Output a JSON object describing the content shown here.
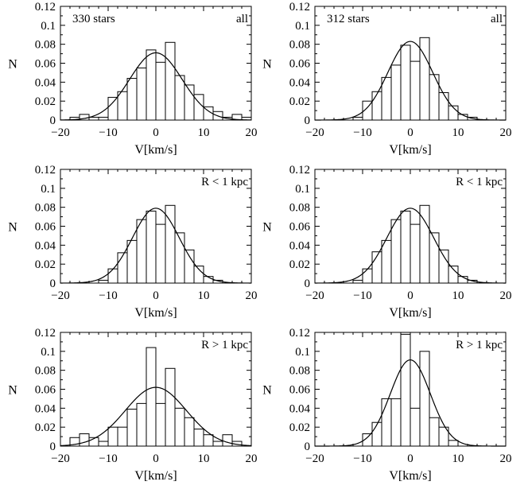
{
  "chart_data": [
    {
      "type": "bar",
      "corner_left": "330 stars",
      "corner_right": "all",
      "xlabel": "V[km/s]",
      "ylabel": "N",
      "xlim": [
        -20,
        20
      ],
      "ylim": [
        0,
        0.12
      ],
      "xticks": [
        -20,
        -10,
        0,
        10,
        20
      ],
      "yticks": [
        0,
        0.02,
        0.04,
        0.06,
        0.08,
        0.1,
        0.12
      ],
      "bin_width": 2,
      "bin_edges_start": -20,
      "values": [
        0,
        0.003,
        0.006,
        0.003,
        0.003,
        0.024,
        0.03,
        0.044,
        0.055,
        0.074,
        0.061,
        0.082,
        0.047,
        0.037,
        0.027,
        0.014,
        0.009,
        0.003,
        0.006,
        0.003
      ],
      "gaussian": {
        "mean": 0,
        "sigma": 5.5,
        "peak": 0.071
      }
    },
    {
      "type": "bar",
      "corner_left": "312 stars",
      "corner_right": "all",
      "xlabel": "V[km/s]",
      "ylabel": "N",
      "xlim": [
        -20,
        20
      ],
      "ylim": [
        0,
        0.12
      ],
      "xticks": [
        -20,
        -10,
        0,
        10,
        20
      ],
      "yticks": [
        0,
        0.02,
        0.04,
        0.06,
        0.08,
        0.1,
        0.12
      ],
      "bin_width": 2,
      "bin_edges_start": -20,
      "values": [
        0,
        0,
        0,
        0,
        0.003,
        0.02,
        0.03,
        0.045,
        0.058,
        0.079,
        0.062,
        0.087,
        0.048,
        0.029,
        0.015,
        0.006,
        0.003,
        0,
        0,
        0
      ],
      "gaussian": {
        "mean": 0,
        "sigma": 4.7,
        "peak": 0.083
      }
    },
    {
      "type": "bar",
      "corner_left": "",
      "corner_right": "R < 1 kpc",
      "xlabel": "V[km/s]",
      "ylabel": "N",
      "xlim": [
        -20,
        20
      ],
      "ylim": [
        0,
        0.12
      ],
      "xticks": [
        -20,
        -10,
        0,
        10,
        20
      ],
      "yticks": [
        0,
        0.02,
        0.04,
        0.06,
        0.08,
        0.1,
        0.12
      ],
      "bin_width": 2,
      "bin_edges_start": -20,
      "values": [
        0,
        0,
        0,
        0,
        0.003,
        0.015,
        0.032,
        0.045,
        0.067,
        0.076,
        0.062,
        0.082,
        0.053,
        0.035,
        0.018,
        0.007,
        0.003,
        0,
        0,
        0
      ],
      "gaussian": {
        "mean": 0,
        "sigma": 4.9,
        "peak": 0.079
      }
    },
    {
      "type": "bar",
      "corner_left": "",
      "corner_right": "R < 1 kpc",
      "xlabel": "V[km/s]",
      "ylabel": "N",
      "xlim": [
        -20,
        20
      ],
      "ylim": [
        0,
        0.12
      ],
      "xticks": [
        -20,
        -10,
        0,
        10,
        20
      ],
      "yticks": [
        0,
        0.02,
        0.04,
        0.06,
        0.08,
        0.1,
        0.12
      ],
      "bin_width": 2,
      "bin_edges_start": -20,
      "values": [
        0,
        0,
        0,
        0,
        0.003,
        0.015,
        0.033,
        0.045,
        0.067,
        0.076,
        0.062,
        0.082,
        0.053,
        0.035,
        0.018,
        0.007,
        0.003,
        0,
        0,
        0
      ],
      "gaussian": {
        "mean": 0,
        "sigma": 4.9,
        "peak": 0.079
      }
    },
    {
      "type": "bar",
      "corner_left": "",
      "corner_right": "R > 1 kpc",
      "xlabel": "V[km/s]",
      "ylabel": "N",
      "xlim": [
        -20,
        20
      ],
      "ylim": [
        0,
        0.12
      ],
      "xticks": [
        -20,
        -10,
        0,
        10,
        20
      ],
      "yticks": [
        0,
        0.02,
        0.04,
        0.06,
        0.08,
        0.1,
        0.12
      ],
      "bin_width": 2,
      "bin_edges_start": -20,
      "values": [
        0,
        0.009,
        0.013,
        0.009,
        0.005,
        0.02,
        0.02,
        0.039,
        0.045,
        0.104,
        0.045,
        0.082,
        0.04,
        0.03,
        0.018,
        0.012,
        0.005,
        0.012,
        0.005,
        0
      ],
      "gaussian": {
        "mean": 0,
        "sigma": 6.4,
        "peak": 0.062
      }
    },
    {
      "type": "bar",
      "corner_left": "",
      "corner_right": "R > 1 kpc",
      "xlabel": "V[km/s]",
      "ylabel": "N",
      "xlim": [
        -20,
        20
      ],
      "ylim": [
        0,
        0.12
      ],
      "xticks": [
        -20,
        -10,
        0,
        10,
        20
      ],
      "yticks": [
        0,
        0.02,
        0.04,
        0.06,
        0.08,
        0.1,
        0.12
      ],
      "bin_width": 2,
      "bin_edges_start": -20,
      "values": [
        0,
        0,
        0,
        0,
        0,
        0.013,
        0.025,
        0.05,
        0.05,
        0.118,
        0.04,
        0.1,
        0.03,
        0.02,
        0.006,
        0,
        0,
        0,
        0,
        0
      ],
      "gaussian": {
        "mean": 0,
        "sigma": 4.2,
        "peak": 0.091
      }
    }
  ]
}
